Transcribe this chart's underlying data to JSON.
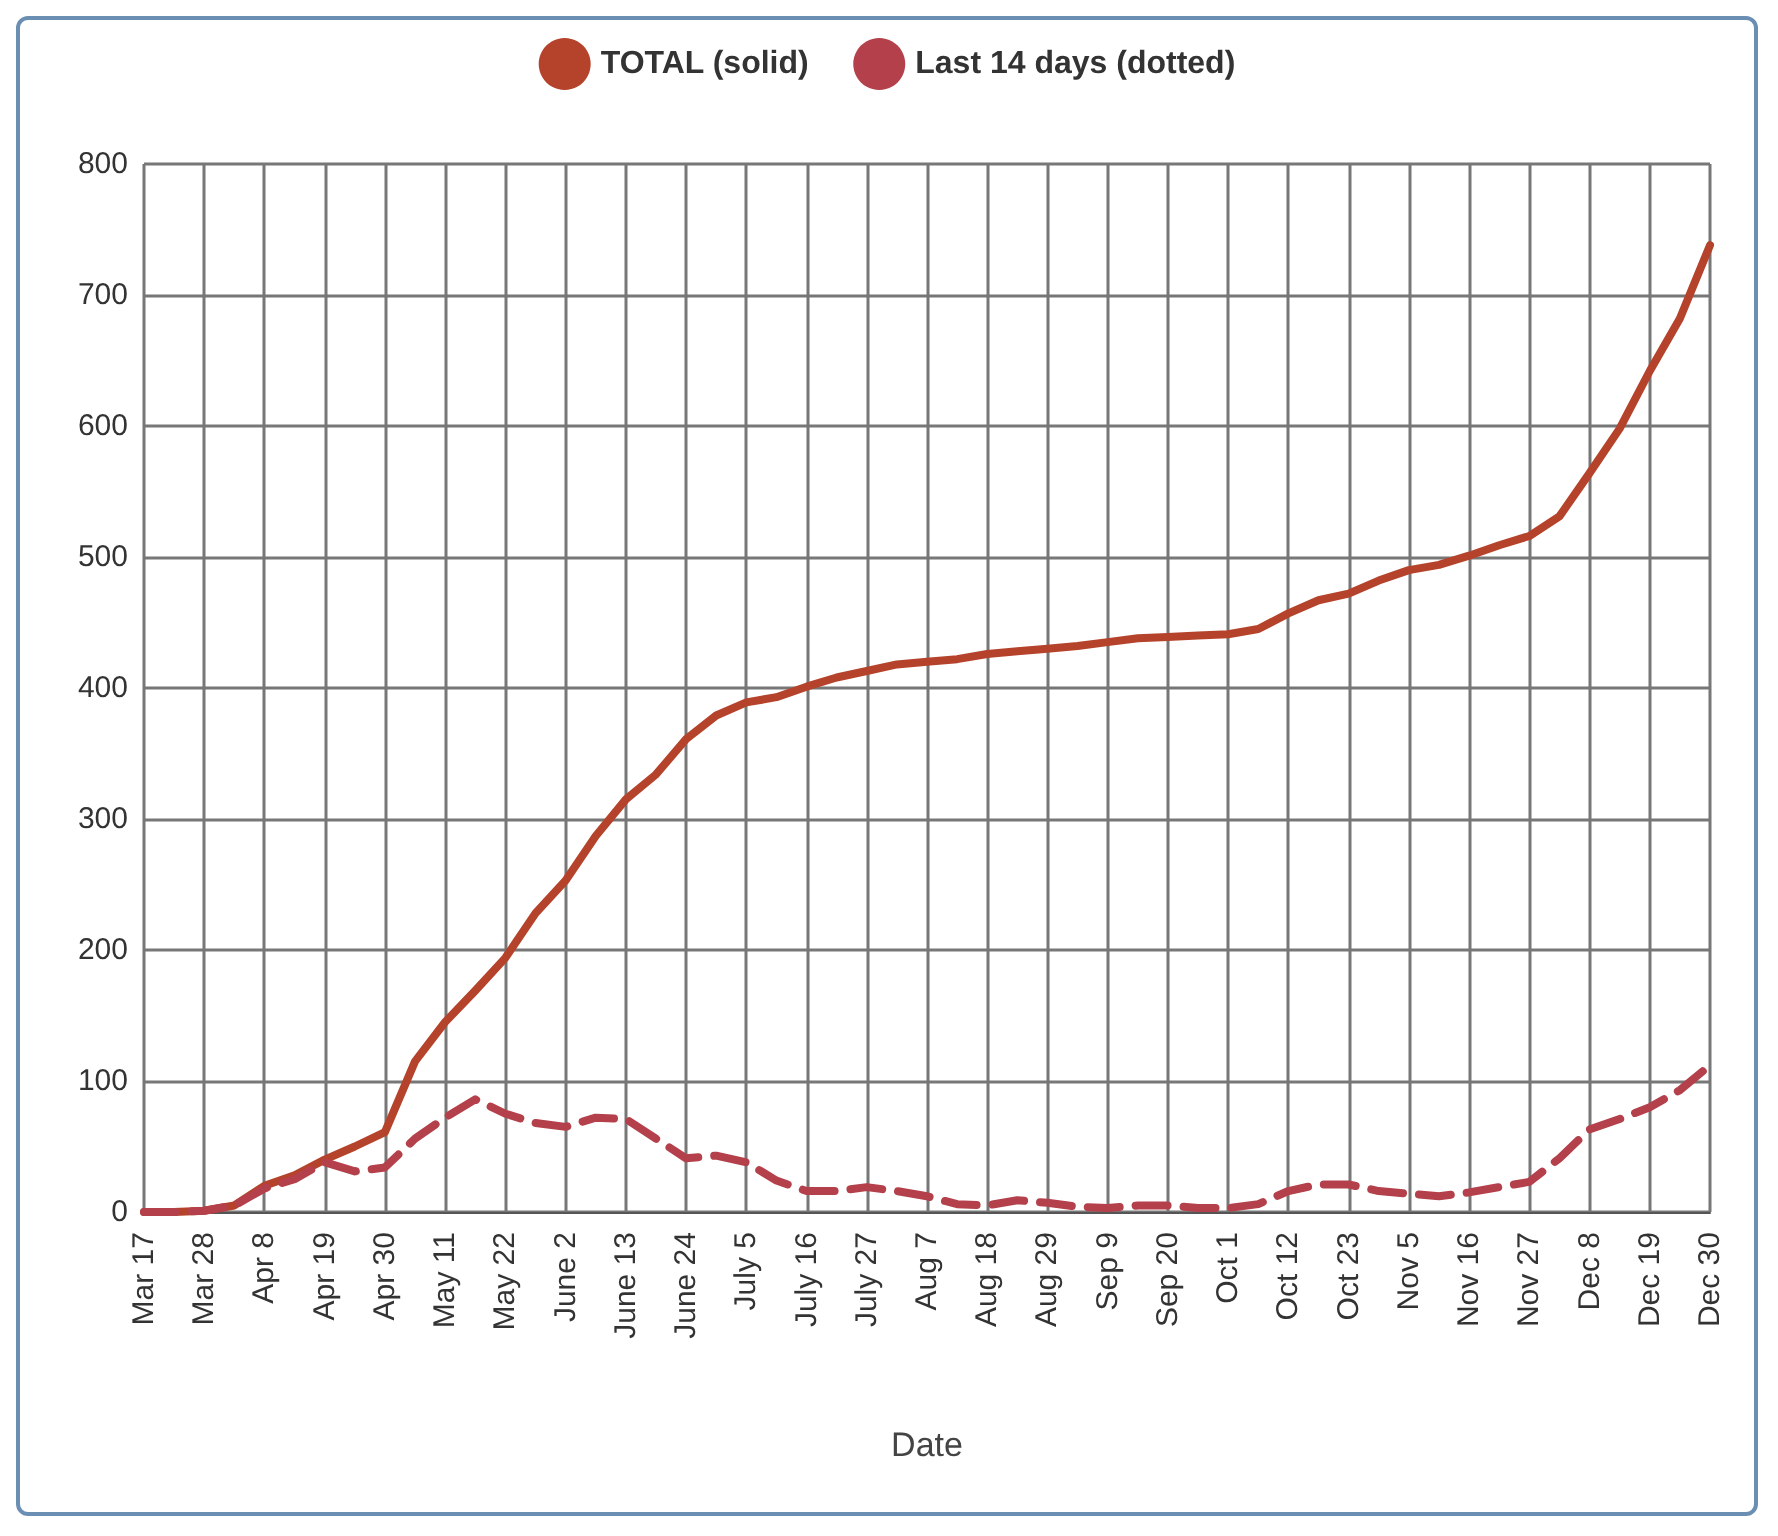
{
  "chart_data": {
    "type": "line",
    "xlabel": "Date",
    "categories": [
      "Mar 17",
      null,
      "Mar 28",
      null,
      "Apr 8",
      null,
      "Apr 19",
      null,
      "Apr 30",
      null,
      "May 11",
      null,
      "May 22",
      null,
      "June 2",
      null,
      "June 13",
      null,
      "June 24",
      null,
      "July 5",
      null,
      "July 16",
      null,
      "July 27",
      null,
      "Aug 7",
      null,
      "Aug 18",
      null,
      "Aug 29",
      null,
      "Sep 9",
      null,
      "Sep 20",
      null,
      "Oct 1",
      null,
      "Oct 12",
      null,
      "Oct 23",
      null,
      "Nov 5",
      null,
      "Nov 16",
      null,
      "Nov 27",
      null,
      "Dec 8",
      null,
      "Dec 19",
      null,
      "Dec 30"
    ],
    "series": [
      {
        "name": "TOTAL (solid)",
        "color": "#b5432b",
        "line_style": "solid",
        "values": [
          0,
          0,
          1,
          5,
          20,
          28,
          40,
          50,
          61,
          115,
          145,
          169,
          194,
          228,
          253,
          287,
          315,
          334,
          361,
          379,
          389,
          393,
          401,
          408,
          413,
          418,
          420,
          422,
          426,
          428,
          430,
          432,
          435,
          438,
          439,
          440,
          441,
          445,
          457,
          467,
          472,
          482,
          490,
          494,
          501,
          509,
          516,
          531,
          564,
          598,
          642,
          682,
          738
        ]
      },
      {
        "name": "Last 14 days (dotted)",
        "color": "#b3404a",
        "line_style": "dashed",
        "values": [
          0,
          0,
          1,
          5,
          18,
          25,
          38,
          31,
          34,
          56,
          72,
          86,
          75,
          68,
          65,
          72,
          71,
          56,
          41,
          43,
          38,
          24,
          16,
          16,
          19,
          16,
          12,
          6,
          5,
          9,
          7,
          4,
          3,
          5,
          5,
          3,
          3,
          6,
          16,
          21,
          21,
          16,
          14,
          12,
          15,
          19,
          23,
          41,
          63,
          71,
          80,
          93,
          112
        ]
      }
    ],
    "ylim": [
      0,
      800
    ],
    "yticks": [
      0,
      100,
      200,
      300,
      400,
      500,
      600,
      700,
      800
    ],
    "grid": true,
    "legend": "top",
    "marker": "none"
  }
}
